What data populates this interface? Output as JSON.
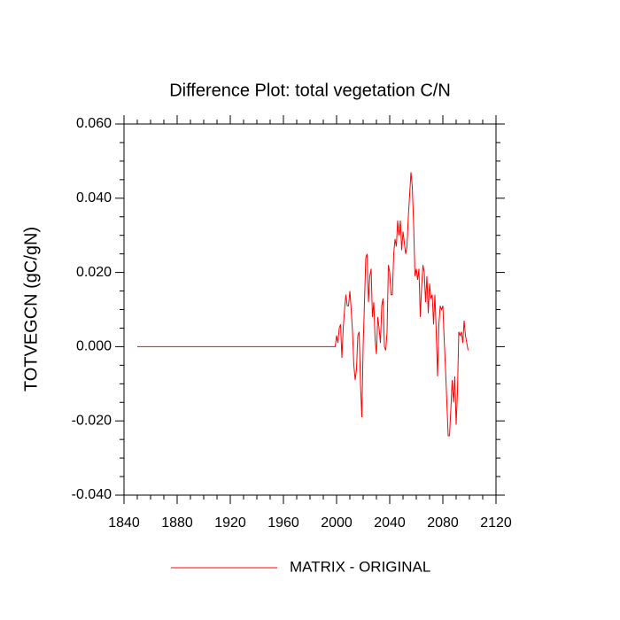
{
  "chart_data": {
    "type": "line",
    "title": "Difference Plot: total vegetation C/N",
    "y_label": "TOTVEGCN  (gC/gN)",
    "xlim": [
      1840,
      2120
    ],
    "xticks": [
      1840,
      1880,
      1920,
      1960,
      2000,
      2040,
      2080,
      2120
    ],
    "ylim": [
      -0.04,
      0.06
    ],
    "yticks": [
      {
        "value": -0.04,
        "label": "-0.040"
      },
      {
        "value": -0.02,
        "label": "-0.020"
      },
      {
        "value": 0,
        "label": "0.000"
      },
      {
        "value": 0.02,
        "label": "0.020"
      },
      {
        "value": 0.04,
        "label": "0.040"
      },
      {
        "value": 0.06,
        "label": "0.060"
      }
    ],
    "grid": false,
    "legend": "bottom",
    "x": [
      1850,
      1999,
      2000,
      2001,
      2002,
      2003,
      2004,
      2005,
      2006,
      2007,
      2008,
      2009,
      2010,
      2011,
      2012,
      2013,
      2014,
      2015,
      2016,
      2017,
      2018,
      2019,
      2020,
      2021,
      2022,
      2023,
      2024,
      2025,
      2026,
      2027,
      2028,
      2029,
      2030,
      2031,
      2032,
      2033,
      2034,
      2035,
      2036,
      2037,
      2038,
      2039,
      2040,
      2041,
      2042,
      2043,
      2044,
      2045,
      2046,
      2047,
      2048,
      2049,
      2050,
      2051,
      2052,
      2053,
      2054,
      2055,
      2056,
      2057,
      2058,
      2059,
      2060,
      2061,
      2062,
      2063,
      2064,
      2065,
      2066,
      2067,
      2068,
      2069,
      2070,
      2071,
      2072,
      2073,
      2074,
      2075,
      2076,
      2077,
      2078,
      2079,
      2080,
      2081,
      2082,
      2083,
      2084,
      2085,
      2086,
      2087,
      2088,
      2089,
      2090,
      2091,
      2092,
      2093,
      2094,
      2095,
      2096,
      2097,
      2098,
      2099
    ],
    "series": [
      {
        "name": "MATRIX - ORIGINAL",
        "color": "#ff0000",
        "values": [
          0,
          0,
          0.003,
          0.001,
          0.005,
          0.006,
          -0.003,
          0.005,
          0.01,
          0.014,
          0.011,
          0.011,
          0.015,
          0.01,
          0.004,
          -0.005,
          -0.009,
          -0.006,
          0.003,
          0.004,
          -0.01,
          -0.019,
          0.0,
          0.012,
          0.024,
          0.025,
          0.012,
          0.019,
          0.021,
          0.008,
          0.012,
          0.002,
          -0.002,
          0.008,
          0.005,
          0.001,
          0.011,
          0.013,
          0.0,
          -0.001,
          0.004,
          0.022,
          0.02,
          0.014,
          0.014,
          0.025,
          0.029,
          0.027,
          0.034,
          0.03,
          0.034,
          0.026,
          0.031,
          0.028,
          0.025,
          0.027,
          0.035,
          0.041,
          0.047,
          0.043,
          0.033,
          0.019,
          0.021,
          0.018,
          0.021,
          0.008,
          0.016,
          0.022,
          0.02,
          0.012,
          0.019,
          0.009,
          0.017,
          0.013,
          0.014,
          0.006,
          0.014,
          0.004,
          -0.008,
          0.006,
          0.011,
          0.01,
          0.011,
          0.002,
          -0.006,
          -0.015,
          -0.024,
          -0.024,
          -0.017,
          -0.009,
          -0.015,
          -0.008,
          -0.021,
          -0.012,
          0.004,
          0.003,
          0.004,
          0.001,
          0.007,
          0.003,
          0.001,
          -0.001
        ]
      }
    ]
  }
}
